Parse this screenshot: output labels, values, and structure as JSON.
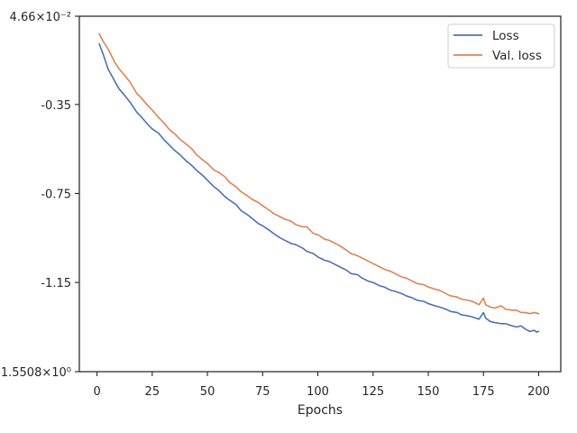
{
  "chart_data": {
    "type": "line",
    "xlabel": "Epochs",
    "ylabel": "",
    "xlim": [
      -8,
      210
    ],
    "ylim": [
      -1.5508,
      0.0466
    ],
    "x_ticks": [
      0,
      25,
      50,
      75,
      100,
      125,
      150,
      175,
      200
    ],
    "x_tick_labels": [
      "0",
      "25",
      "50",
      "75",
      "100",
      "125",
      "150",
      "175",
      "200"
    ],
    "y_ticks": [
      0.0466,
      -0.35,
      -0.75,
      -1.15,
      -1.5508
    ],
    "y_tick_labels": [
      "4.66×10⁻²",
      "-0.35",
      "-0.75",
      "-1.15",
      "-1.5508×10⁰"
    ],
    "legend": {
      "position": "upper-right"
    },
    "series": [
      {
        "name": "Loss",
        "color": "#4c72b0",
        "points": [
          [
            1,
            -0.077
          ],
          [
            3,
            -0.13
          ],
          [
            5,
            -0.19
          ],
          [
            8,
            -0.245
          ],
          [
            10,
            -0.28
          ],
          [
            13,
            -0.315
          ],
          [
            15,
            -0.34
          ],
          [
            18,
            -0.385
          ],
          [
            20,
            -0.405
          ],
          [
            23,
            -0.44
          ],
          [
            25,
            -0.46
          ],
          [
            28,
            -0.48
          ],
          [
            30,
            -0.505
          ],
          [
            33,
            -0.535
          ],
          [
            35,
            -0.555
          ],
          [
            38,
            -0.58
          ],
          [
            40,
            -0.6
          ],
          [
            43,
            -0.625
          ],
          [
            45,
            -0.645
          ],
          [
            48,
            -0.67
          ],
          [
            50,
            -0.69
          ],
          [
            53,
            -0.72
          ],
          [
            55,
            -0.735
          ],
          [
            58,
            -0.765
          ],
          [
            60,
            -0.78
          ],
          [
            63,
            -0.8
          ],
          [
            65,
            -0.825
          ],
          [
            68,
            -0.845
          ],
          [
            70,
            -0.86
          ],
          [
            73,
            -0.885
          ],
          [
            75,
            -0.895
          ],
          [
            78,
            -0.915
          ],
          [
            80,
            -0.93
          ],
          [
            83,
            -0.95
          ],
          [
            85,
            -0.96
          ],
          [
            88,
            -0.975
          ],
          [
            90,
            -0.98
          ],
          [
            93,
            -0.995
          ],
          [
            95,
            -1.01
          ],
          [
            98,
            -1.02
          ],
          [
            100,
            -1.035
          ],
          [
            103,
            -1.05
          ],
          [
            105,
            -1.055
          ],
          [
            108,
            -1.07
          ],
          [
            110,
            -1.08
          ],
          [
            113,
            -1.095
          ],
          [
            115,
            -1.11
          ],
          [
            118,
            -1.115
          ],
          [
            120,
            -1.13
          ],
          [
            123,
            -1.145
          ],
          [
            125,
            -1.15
          ],
          [
            128,
            -1.165
          ],
          [
            130,
            -1.17
          ],
          [
            133,
            -1.185
          ],
          [
            135,
            -1.19
          ],
          [
            138,
            -1.2
          ],
          [
            140,
            -1.21
          ],
          [
            143,
            -1.22
          ],
          [
            145,
            -1.23
          ],
          [
            148,
            -1.235
          ],
          [
            150,
            -1.245
          ],
          [
            153,
            -1.255
          ],
          [
            155,
            -1.26
          ],
          [
            158,
            -1.27
          ],
          [
            160,
            -1.28
          ],
          [
            163,
            -1.285
          ],
          [
            165,
            -1.295
          ],
          [
            168,
            -1.3
          ],
          [
            170,
            -1.305
          ],
          [
            173,
            -1.315
          ],
          [
            175,
            -1.285
          ],
          [
            176,
            -1.31
          ],
          [
            178,
            -1.325
          ],
          [
            180,
            -1.33
          ],
          [
            183,
            -1.335
          ],
          [
            185,
            -1.335
          ],
          [
            188,
            -1.345
          ],
          [
            190,
            -1.35
          ],
          [
            192,
            -1.345
          ],
          [
            194,
            -1.36
          ],
          [
            196,
            -1.37
          ],
          [
            198,
            -1.365
          ],
          [
            199,
            -1.373
          ],
          [
            200,
            -1.37
          ]
        ]
      },
      {
        "name": "Val. loss",
        "color": "#dd8452",
        "points": [
          [
            1,
            -0.032
          ],
          [
            3,
            -0.07
          ],
          [
            5,
            -0.1
          ],
          [
            8,
            -0.16
          ],
          [
            10,
            -0.19
          ],
          [
            13,
            -0.225
          ],
          [
            15,
            -0.25
          ],
          [
            18,
            -0.3
          ],
          [
            20,
            -0.32
          ],
          [
            23,
            -0.355
          ],
          [
            25,
            -0.375
          ],
          [
            28,
            -0.41
          ],
          [
            30,
            -0.43
          ],
          [
            33,
            -0.465
          ],
          [
            35,
            -0.48
          ],
          [
            38,
            -0.51
          ],
          [
            40,
            -0.525
          ],
          [
            43,
            -0.55
          ],
          [
            45,
            -0.575
          ],
          [
            48,
            -0.6
          ],
          [
            50,
            -0.615
          ],
          [
            53,
            -0.645
          ],
          [
            55,
            -0.655
          ],
          [
            58,
            -0.675
          ],
          [
            60,
            -0.7
          ],
          [
            63,
            -0.72
          ],
          [
            65,
            -0.74
          ],
          [
            68,
            -0.76
          ],
          [
            70,
            -0.775
          ],
          [
            73,
            -0.79
          ],
          [
            75,
            -0.805
          ],
          [
            78,
            -0.825
          ],
          [
            80,
            -0.84
          ],
          [
            83,
            -0.855
          ],
          [
            85,
            -0.865
          ],
          [
            88,
            -0.875
          ],
          [
            90,
            -0.89
          ],
          [
            93,
            -0.9
          ],
          [
            95,
            -0.9
          ],
          [
            98,
            -0.93
          ],
          [
            100,
            -0.935
          ],
          [
            103,
            -0.955
          ],
          [
            105,
            -0.96
          ],
          [
            108,
            -0.975
          ],
          [
            110,
            -0.985
          ],
          [
            113,
            -1.005
          ],
          [
            115,
            -1.02
          ],
          [
            118,
            -1.03
          ],
          [
            120,
            -1.04
          ],
          [
            123,
            -1.055
          ],
          [
            125,
            -1.065
          ],
          [
            128,
            -1.08
          ],
          [
            130,
            -1.09
          ],
          [
            133,
            -1.1
          ],
          [
            135,
            -1.11
          ],
          [
            138,
            -1.125
          ],
          [
            140,
            -1.13
          ],
          [
            143,
            -1.145
          ],
          [
            145,
            -1.155
          ],
          [
            148,
            -1.16
          ],
          [
            150,
            -1.17
          ],
          [
            153,
            -1.18
          ],
          [
            155,
            -1.185
          ],
          [
            158,
            -1.2
          ],
          [
            160,
            -1.21
          ],
          [
            163,
            -1.215
          ],
          [
            165,
            -1.225
          ],
          [
            168,
            -1.23
          ],
          [
            170,
            -1.235
          ],
          [
            173,
            -1.25
          ],
          [
            175,
            -1.22
          ],
          [
            176,
            -1.25
          ],
          [
            178,
            -1.26
          ],
          [
            180,
            -1.265
          ],
          [
            183,
            -1.255
          ],
          [
            185,
            -1.27
          ],
          [
            188,
            -1.275
          ],
          [
            190,
            -1.275
          ],
          [
            192,
            -1.285
          ],
          [
            194,
            -1.285
          ],
          [
            196,
            -1.29
          ],
          [
            198,
            -1.285
          ],
          [
            200,
            -1.29
          ]
        ]
      }
    ]
  }
}
